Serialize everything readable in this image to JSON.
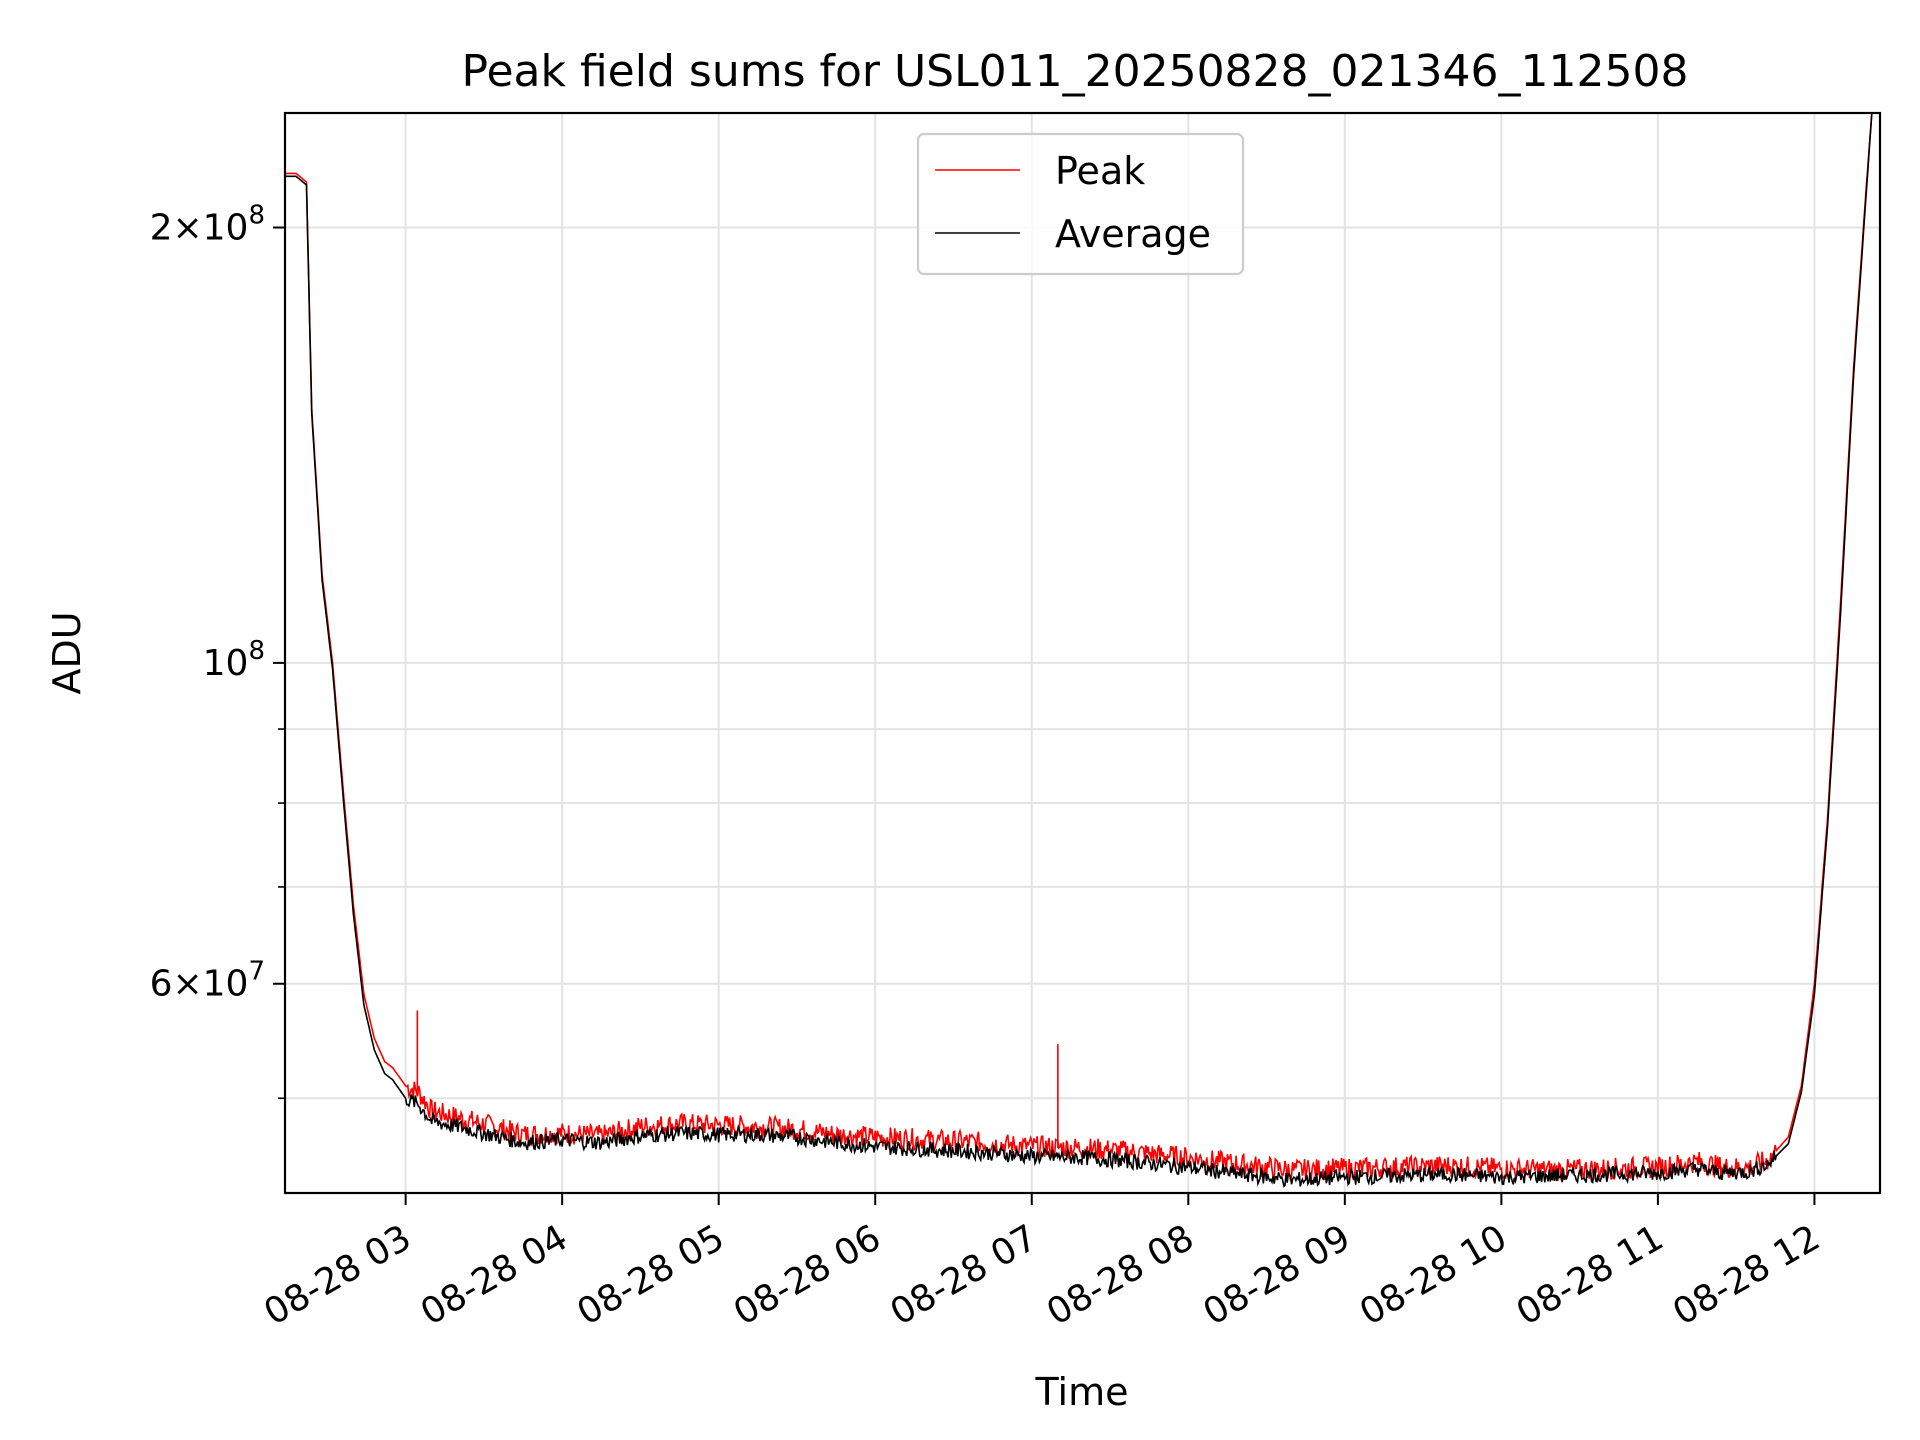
{
  "chart_data": {
    "type": "line",
    "title": "Peak field sums for USL011_20250828_021346_112508",
    "xlabel": "Time",
    "ylabel": "ADU",
    "y_scale": "log",
    "ylim": [
      43000000,
      240000000
    ],
    "xlim": [
      "2025-08-28T02:13:46",
      "2025-08-28T12:25:08"
    ],
    "grid": true,
    "legend_position": "top-center",
    "x_ticks": [
      {
        "t": "2025-08-28T03:00",
        "label": "08-28 03"
      },
      {
        "t": "2025-08-28T04:00",
        "label": "08-28 04"
      },
      {
        "t": "2025-08-28T05:00",
        "label": "08-28 05"
      },
      {
        "t": "2025-08-28T06:00",
        "label": "08-28 06"
      },
      {
        "t": "2025-08-28T07:00",
        "label": "08-28 07"
      },
      {
        "t": "2025-08-28T08:00",
        "label": "08-28 08"
      },
      {
        "t": "2025-08-28T09:00",
        "label": "08-28 09"
      },
      {
        "t": "2025-08-28T10:00",
        "label": "08-28 10"
      },
      {
        "t": "2025-08-28T11:00",
        "label": "08-28 11"
      },
      {
        "t": "2025-08-28T12:00",
        "label": "08-28 12"
      }
    ],
    "y_ticks_major": [
      {
        "v": 60000000,
        "mant": "6",
        "exp": "7"
      },
      {
        "v": 100000000,
        "mant": "",
        "exp": "8"
      },
      {
        "v": 200000000,
        "mant": "2",
        "exp": "8"
      }
    ],
    "y_ticks_minor": [
      50000000,
      70000000,
      80000000,
      90000000
    ],
    "series": [
      {
        "name": "Peak",
        "color": "#ff0000",
        "points": [
          [
            "2025-08-28T02:13:46",
            218000000
          ],
          [
            "2025-08-28T02:18:00",
            218000000
          ],
          [
            "2025-08-28T02:22:00",
            215000000
          ],
          [
            "2025-08-28T02:24:00",
            150000000
          ],
          [
            "2025-08-28T02:28:00",
            115000000
          ],
          [
            "2025-08-28T02:32:00",
            100000000
          ],
          [
            "2025-08-28T02:36:00",
            82000000
          ],
          [
            "2025-08-28T02:40:00",
            68000000
          ],
          [
            "2025-08-28T02:44:00",
            59000000
          ],
          [
            "2025-08-28T02:48:00",
            55000000
          ],
          [
            "2025-08-28T02:52:00",
            53000000
          ],
          [
            "2025-08-28T02:55:00",
            52500000
          ],
          [
            "2025-08-28T03:00:00",
            51000000
          ],
          [
            "2025-08-28T03:05:00",
            50500000
          ],
          [
            "2025-08-28T03:10:00",
            49000000
          ],
          [
            "2025-08-28T03:20:00",
            48500000
          ],
          [
            "2025-08-28T03:30:00",
            48000000
          ],
          [
            "2025-08-28T03:45:00",
            47200000
          ],
          [
            "2025-08-28T04:00:00",
            47300000
          ],
          [
            "2025-08-28T04:15:00",
            47100000
          ],
          [
            "2025-08-28T04:30:00",
            47800000
          ],
          [
            "2025-08-28T04:45:00",
            48000000
          ],
          [
            "2025-08-28T05:00:00",
            47900000
          ],
          [
            "2025-08-28T05:15:00",
            47800000
          ],
          [
            "2025-08-28T05:30:00",
            47600000
          ],
          [
            "2025-08-28T05:45:00",
            47200000
          ],
          [
            "2025-08-28T06:00:00",
            47000000
          ],
          [
            "2025-08-28T06:20:00",
            46800000
          ],
          [
            "2025-08-28T06:40:00",
            46600000
          ],
          [
            "2025-08-28T07:00:00",
            46300000
          ],
          [
            "2025-08-28T07:20:00",
            46200000
          ],
          [
            "2025-08-28T07:40:00",
            45900000
          ],
          [
            "2025-08-28T08:00:00",
            45500000
          ],
          [
            "2025-08-28T08:20:00",
            45000000
          ],
          [
            "2025-08-28T08:40:00",
            44600000
          ],
          [
            "2025-08-28T09:00:00",
            44700000
          ],
          [
            "2025-08-28T09:20:00",
            44800000
          ],
          [
            "2025-08-28T09:40:00",
            44900000
          ],
          [
            "2025-08-28T10:00:00",
            44700000
          ],
          [
            "2025-08-28T10:20:00",
            44600000
          ],
          [
            "2025-08-28T10:40:00",
            44700000
          ],
          [
            "2025-08-28T11:00:00",
            44800000
          ],
          [
            "2025-08-28T11:15:00",
            45200000
          ],
          [
            "2025-08-28T11:25:00",
            44800000
          ],
          [
            "2025-08-28T11:35:00",
            44800000
          ],
          [
            "2025-08-28T11:42:00",
            45300000
          ],
          [
            "2025-08-28T11:50:00",
            47000000
          ],
          [
            "2025-08-28T11:55:00",
            51000000
          ],
          [
            "2025-08-28T12:00:00",
            60000000
          ],
          [
            "2025-08-28T12:05:00",
            78000000
          ],
          [
            "2025-08-28T12:10:00",
            110000000
          ],
          [
            "2025-08-28T12:15:00",
            160000000
          ],
          [
            "2025-08-28T12:20:00",
            215000000
          ],
          [
            "2025-08-28T12:22:00",
            240000000
          ]
        ],
        "spikes": [
          [
            "2025-08-28T03:04:30",
            57500000
          ],
          [
            "2025-08-28T07:10:00",
            54500000
          ]
        ]
      },
      {
        "name": "Average",
        "color": "#000000",
        "points": [
          [
            "2025-08-28T02:13:46",
            217000000
          ],
          [
            "2025-08-28T02:18:00",
            217000000
          ],
          [
            "2025-08-28T02:22:00",
            214000000
          ],
          [
            "2025-08-28T02:24:00",
            149000000
          ],
          [
            "2025-08-28T02:28:00",
            114000000
          ],
          [
            "2025-08-28T02:32:00",
            99000000
          ],
          [
            "2025-08-28T02:36:00",
            81000000
          ],
          [
            "2025-08-28T02:40:00",
            67000000
          ],
          [
            "2025-08-28T02:44:00",
            58000000
          ],
          [
            "2025-08-28T02:48:00",
            54000000
          ],
          [
            "2025-08-28T02:52:00",
            52000000
          ],
          [
            "2025-08-28T02:55:00",
            51500000
          ],
          [
            "2025-08-28T03:00:00",
            50000000
          ],
          [
            "2025-08-28T03:05:00",
            49500000
          ],
          [
            "2025-08-28T03:10:00",
            48200000
          ],
          [
            "2025-08-28T03:20:00",
            47800000
          ],
          [
            "2025-08-28T03:30:00",
            47300000
          ],
          [
            "2025-08-28T03:45:00",
            46600000
          ],
          [
            "2025-08-28T04:00:00",
            46800000
          ],
          [
            "2025-08-28T04:15:00",
            46600000
          ],
          [
            "2025-08-28T04:30:00",
            47100000
          ],
          [
            "2025-08-28T04:45:00",
            47300000
          ],
          [
            "2025-08-28T05:00:00",
            47200000
          ],
          [
            "2025-08-28T05:15:00",
            47200000
          ],
          [
            "2025-08-28T05:30:00",
            47000000
          ],
          [
            "2025-08-28T05:45:00",
            46600000
          ],
          [
            "2025-08-28T06:00:00",
            46300000
          ],
          [
            "2025-08-28T06:20:00",
            46100000
          ],
          [
            "2025-08-28T06:40:00",
            45900000
          ],
          [
            "2025-08-28T07:00:00",
            45600000
          ],
          [
            "2025-08-28T07:20:00",
            45500000
          ],
          [
            "2025-08-28T07:40:00",
            45200000
          ],
          [
            "2025-08-28T08:00:00",
            44800000
          ],
          [
            "2025-08-28T08:20:00",
            44300000
          ],
          [
            "2025-08-28T08:40:00",
            43900000
          ],
          [
            "2025-08-28T09:00:00",
            44100000
          ],
          [
            "2025-08-28T09:20:00",
            44200000
          ],
          [
            "2025-08-28T09:40:00",
            44300000
          ],
          [
            "2025-08-28T10:00:00",
            44100000
          ],
          [
            "2025-08-28T10:20:00",
            44200000
          ],
          [
            "2025-08-28T10:40:00",
            44300000
          ],
          [
            "2025-08-28T11:00:00",
            44400000
          ],
          [
            "2025-08-28T11:15:00",
            44700000
          ],
          [
            "2025-08-28T11:25:00",
            44400000
          ],
          [
            "2025-08-28T11:35:00",
            44500000
          ],
          [
            "2025-08-28T11:42:00",
            45000000
          ],
          [
            "2025-08-28T11:50:00",
            46500000
          ],
          [
            "2025-08-28T11:55:00",
            50500000
          ],
          [
            "2025-08-28T12:00:00",
            59000000
          ],
          [
            "2025-08-28T12:05:00",
            77000000
          ],
          [
            "2025-08-28T12:10:00",
            108000000
          ],
          [
            "2025-08-28T12:15:00",
            158000000
          ],
          [
            "2025-08-28T12:20:00",
            213000000
          ],
          [
            "2025-08-28T12:22:00",
            240000000
          ]
        ]
      }
    ]
  }
}
